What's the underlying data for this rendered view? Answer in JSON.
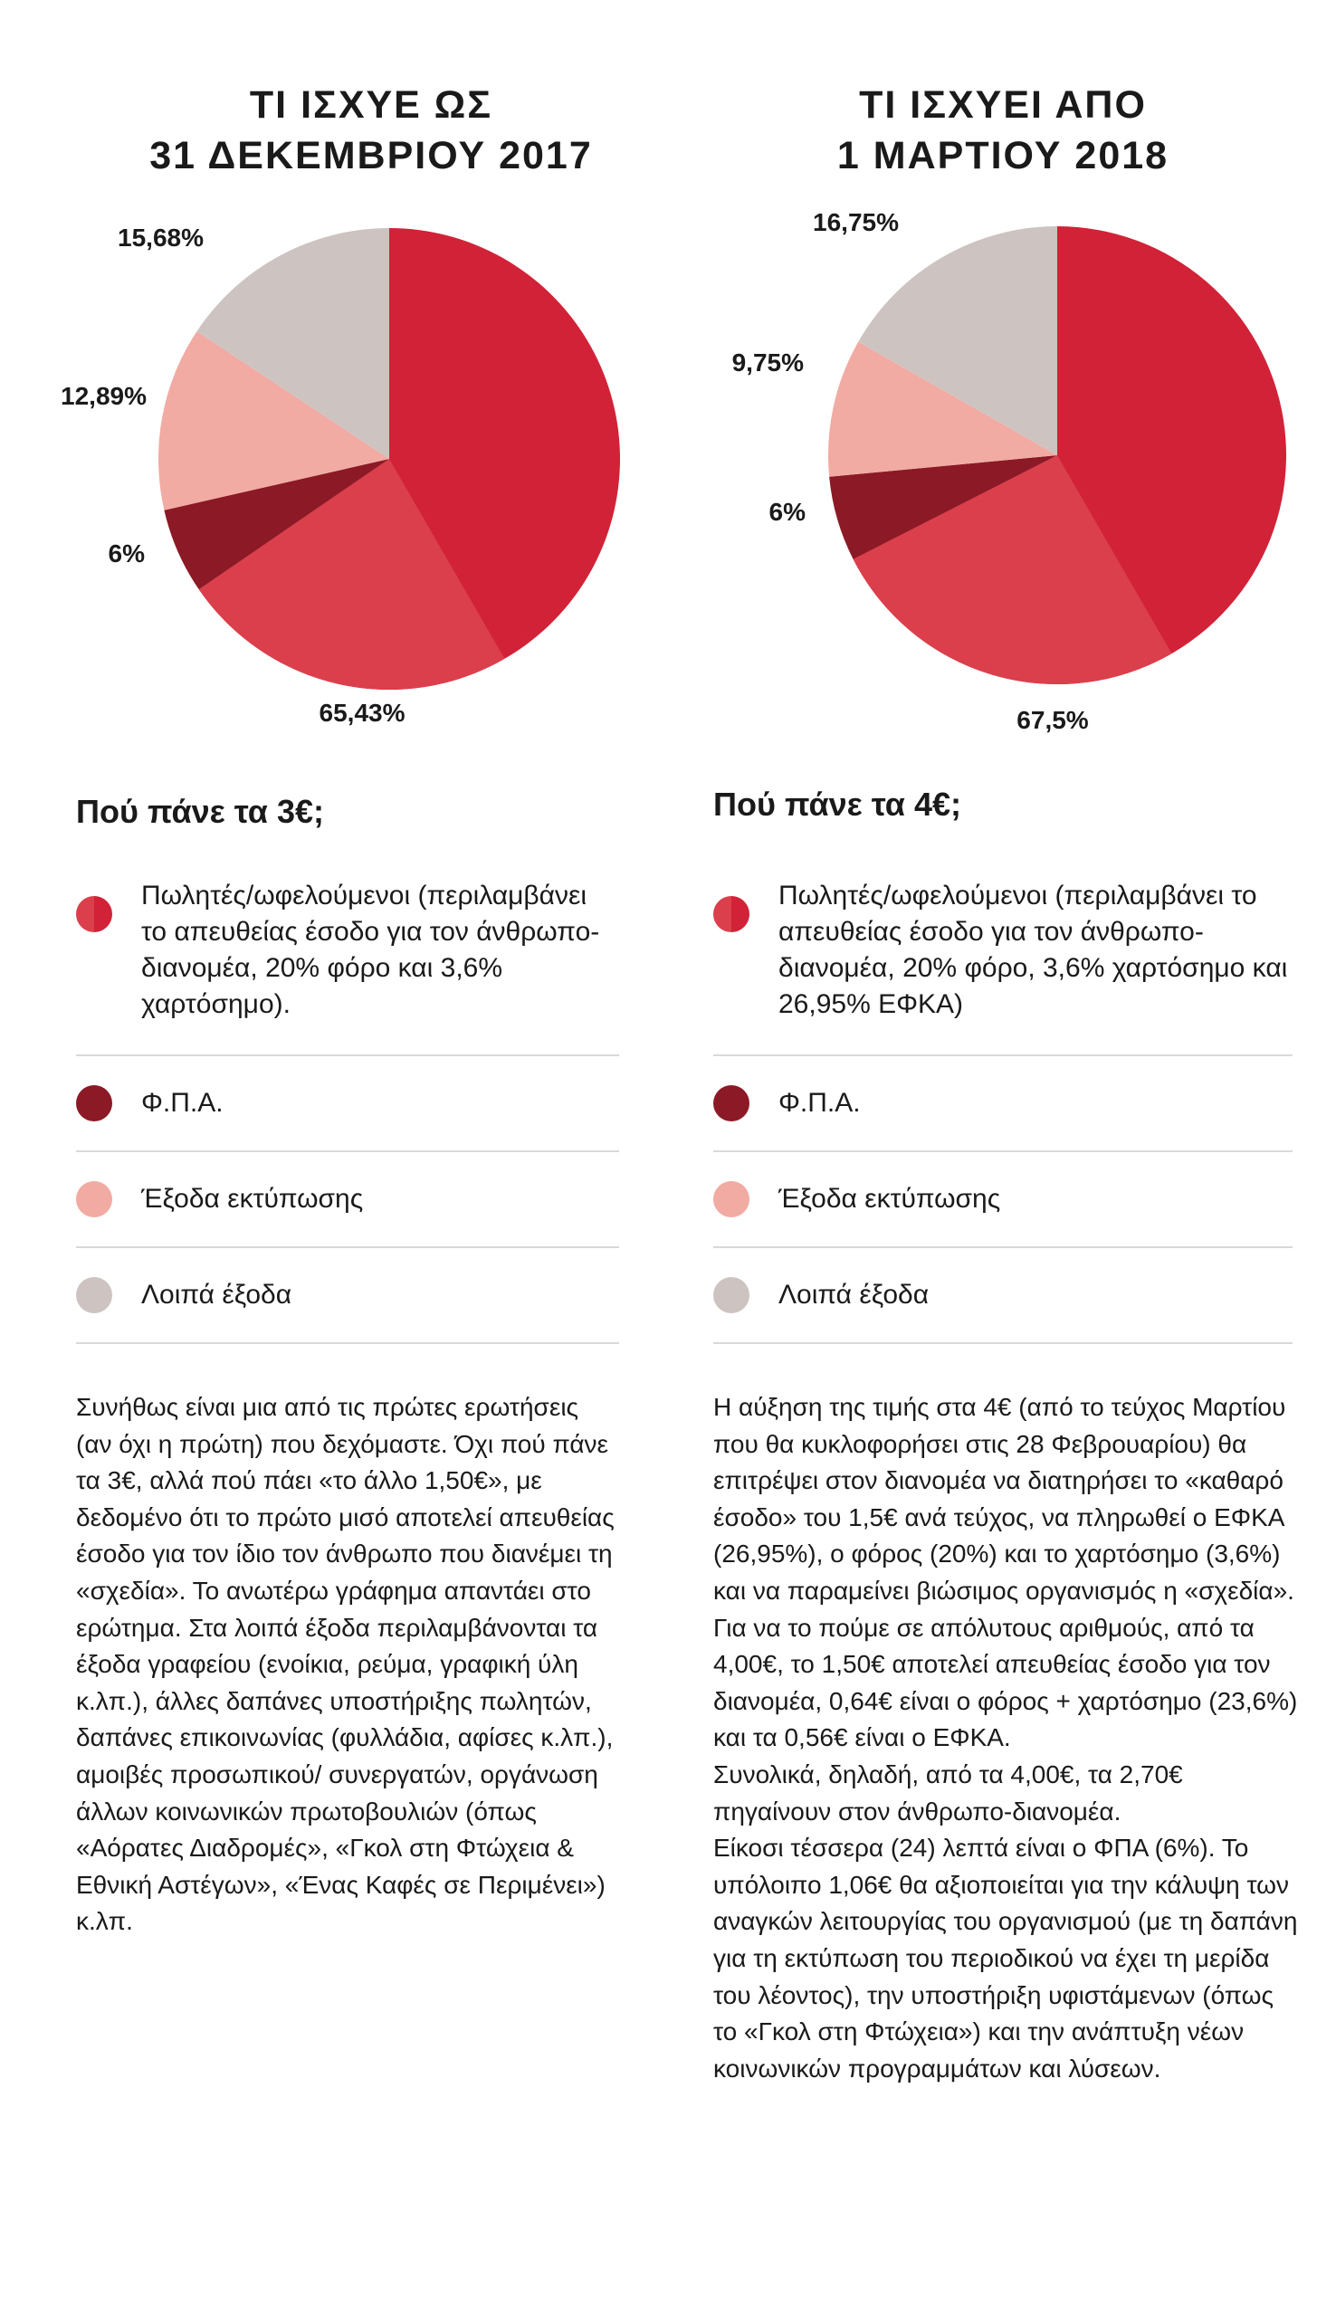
{
  "colors": {
    "vendors": "#d12238",
    "vat": "#8c1a26",
    "printing": "#f2aba2",
    "other": "#cdc4c1",
    "vendors_light": "#db3f4b"
  },
  "left": {
    "title_line1": "ΤΙ ΙΣΧΥΕ ΩΣ",
    "title_line2": "31 ΔΕΚΕΜΒΡΙΟΥ 2017",
    "subhead": "Πού πάνε τα 3€;",
    "legend": [
      {
        "label": "Πωλητές/ωφελούμενοι (περιλαμβάνει το απευθείας έσοδο για τον άνθρωπο-διανομέα, 20% φόρο και 3,6% χαρτόσημο).",
        "icon": "split-red-dot"
      },
      {
        "label": "Φ.Π.Α.",
        "icon": "dark-red-dot"
      },
      {
        "label": "Έξοδα εκτύπωσης",
        "icon": "pink-dot"
      },
      {
        "label": "Λοιπά έξοδα",
        "icon": "grey-dot"
      }
    ],
    "body": "Συνήθως είναι μια από τις πρώτες ερωτήσεις (αν όχι η πρώτη) που δεχόμαστε. Όχι πού πάνε τα 3€, αλλά πού πάει «το άλλο 1,50€», με δεδομένο ότι το πρώτο μισό αποτελεί απευθείας έσοδο για τον ίδιο τον άνθρωπο που διανέμει τη «σχεδία». Το ανωτέρω γράφημα απαντάει στο ερώτημα. Στα λοιπά έξοδα περιλαμβάνονται τα έξοδα γραφείου (ενοίκια, ρεύμα, γραφική ύλη κ.λπ.), άλλες δαπάνες υποστήριξης πωλητών, δαπάνες επικοινωνίας (φυλλάδια, αφίσες κ.λπ.), αμοιβές προσωπικού/ συνεργατών, οργάνωση άλλων κοινωνικών πρωτοβουλιών (όπως «Αόρατες Διαδρομές», «Γκολ στη Φτώχεια & Εθνική Αστέγων», «Ένας Καφές σε Περιμένει») κ.λπ."
  },
  "right": {
    "title_line1": "ΤΙ ΙΣΧΥΕΙ ΑΠΟ",
    "title_line2": "1 ΜΑΡΤΙΟΥ 2018",
    "subhead": "Πού πάνε τα 4€;",
    "legend": [
      {
        "label": "Πωλητές/ωφελούμενοι (περιλαμβάνει το απευθείας έσοδο για τον άνθρωπο-διανομέα, 20% φόρο, 3,6% χαρτόσημο και 26,95% ΕΦΚΑ)",
        "icon": "split-red-dot"
      },
      {
        "label": "Φ.Π.Α.",
        "icon": "dark-red-dot"
      },
      {
        "label": "Έξοδα εκτύπωσης",
        "icon": "pink-dot"
      },
      {
        "label": "Λοιπά έξοδα",
        "icon": "grey-dot"
      }
    ],
    "body": "Η αύξηση της τιμής στα 4€ (από το τεύχος Μαρτίου που θα κυκλοφορήσει στις 28 Φεβρουαρίου) θα επιτρέψει στον διανομέα να διατηρήσει το «καθαρό έσοδο» του 1,5€ ανά τεύχος, να πληρωθεί ο ΕΦΚΑ (26,95%), ο φόρος (20%) και το χαρτόσημο (3,6%) και να παραμείνει βιώσιμος οργανισμός η «σχεδία». Για να το πούμε σε απόλυτους αριθμούς, από τα 4,00€, το 1,50€ αποτελεί απευθείας έσοδο για τον διανομέα, 0,64€ είναι ο φόρος + χαρτόσημο (23,6%) και τα 0,56€ είναι ο ΕΦΚΑ.\nΣυνολικά, δηλαδή, από τα 4,00€, τα 2,70€ πηγαίνουν στον άνθρωπο-διανομέα.\nΕίκοσι τέσσερα (24) λεπτά είναι ο ΦΠΑ (6%). Το υπόλοιπο 1,06€ θα αξιοποιείται για την κάλυψη των αναγκών λειτουργίας του οργανισμού (με τη δαπάνη για τη εκτύπωση του περιοδικού να έχει τη μερίδα του λέοντος), την υποστήριξη υφιστάμενων (όπως το «Γκολ στη Φτώχεια») και την ανάπτυξη νέων κοινωνικών προγραμμάτων και λύσεων."
  },
  "chart_data": [
    {
      "type": "pie",
      "title": "ΤΙ ΙΣΧΥΕ ΩΣ 31 ΔΕΚΕΜΒΡΙΟΥ 2017",
      "categories": [
        "Πωλητές/ωφελούμενοι",
        "Φ.Π.Α.",
        "Έξοδα εκτύπωσης",
        "Λοιπά έξοδα"
      ],
      "values": [
        65.43,
        6,
        12.89,
        15.68
      ],
      "value_labels": [
        "65,43%",
        "6%",
        "12,89%",
        "15,68%"
      ],
      "colors": [
        "#d12238",
        "#8c1a26",
        "#f2aba2",
        "#cdc4c1"
      ],
      "start_angle_deg": 0,
      "direction": "clockwise"
    },
    {
      "type": "pie",
      "title": "ΤΙ ΙΣΧΥΕΙ ΑΠΟ 1 ΜΑΡΤΙΟΥ 2018",
      "categories": [
        "Πωλητές/ωφελούμενοι",
        "Φ.Π.Α.",
        "Έξοδα εκτύπωσης",
        "Λοιπά έξοδα"
      ],
      "values": [
        67.5,
        6,
        9.75,
        16.75
      ],
      "value_labels": [
        "67,5%",
        "6%",
        "9,75%",
        "16,75%"
      ],
      "colors": [
        "#d12238",
        "#8c1a26",
        "#f2aba2",
        "#cdc4c1"
      ],
      "start_angle_deg": 0,
      "direction": "clockwise"
    }
  ]
}
